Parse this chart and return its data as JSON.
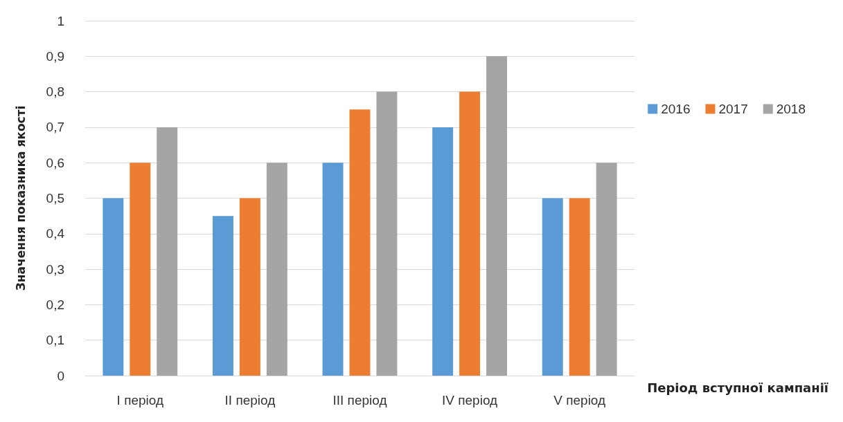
{
  "chart_data": {
    "type": "bar",
    "xlabel": "Період вступної кампанії",
    "ylabel": "Значення показника якості",
    "categories": [
      "I період",
      "II період",
      "III період",
      "IV період",
      "V період"
    ],
    "series": [
      {
        "name": "2016",
        "color": "#5b9bd5",
        "values": [
          0.5,
          0.45,
          0.6,
          0.7,
          0.5
        ]
      },
      {
        "name": "2017",
        "color": "#ed7d31",
        "values": [
          0.6,
          0.5,
          0.75,
          0.8,
          0.5
        ]
      },
      {
        "name": "2018",
        "color": "#a5a5a5",
        "values": [
          0.7,
          0.6,
          0.8,
          0.9,
          0.6
        ]
      }
    ],
    "ylim": [
      0,
      1
    ],
    "yticks": [
      0,
      {
        "value": 0.1,
        "label": "0,1"
      },
      {
        "value": 0.2,
        "label": "0,2"
      },
      {
        "value": 0.3,
        "label": "0,3"
      },
      {
        "value": 0.4,
        "label": "0,4"
      },
      {
        "value": 0.5,
        "label": "0,5"
      },
      {
        "value": 0.6,
        "label": "0,6"
      },
      {
        "value": 0.7,
        "label": "0,7"
      },
      {
        "value": 0.8,
        "label": "0,8"
      },
      {
        "value": 0.9,
        "label": "0,9"
      },
      1
    ],
    "grid": "y",
    "legend": "right"
  }
}
